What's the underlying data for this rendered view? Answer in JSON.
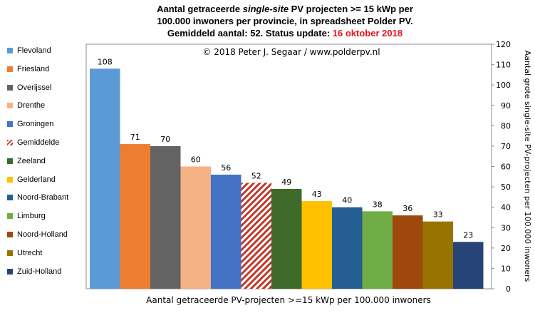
{
  "title": {
    "line1_a": "Aantal getraceerde ",
    "line1_b": "single-site",
    "line1_c": " PV projecten >= 15 kWp per",
    "line2": "100.000 inwoners per provincie, in spreadsheet Polder PV.",
    "line3_a": "Gemiddeld aantal: 52. Status update: ",
    "line3_b": "16 oktober 2018"
  },
  "chart_data": {
    "type": "bar",
    "title": "Aantal getraceerde single-site PV projecten >= 15 kWp per 100.000 inwoners per provincie, in spreadsheet Polder PV. Gemiddeld aantal: 52. Status update: 16 oktober 2018",
    "copyright": "© 2018 Peter J. Segaar / www.polderpv.nl",
    "xlabel": "Aantal getraceerde PV-projecten >=15 kWp per 100.000 inwoners",
    "ylabel": "Aantal grote single-site PV-projecten per 100.000 inwoners",
    "ylim": [
      0,
      120
    ],
    "yticks": [
      0,
      10,
      20,
      30,
      40,
      50,
      60,
      70,
      80,
      90,
      100,
      110,
      120
    ],
    "y_axis_position": "right",
    "grid": false,
    "legend_position": "left",
    "categories": [
      "Flevoland",
      "Friesland",
      "Overijssel",
      "Drenthe",
      "Groningen",
      "Gemiddelde",
      "Zeeland",
      "Gelderland",
      "Noord-Brabant",
      "Limburg",
      "Noord-Holland",
      "Utrecht",
      "Zuid-Holland"
    ],
    "values": [
      108,
      71,
      70,
      60,
      56,
      52,
      49,
      43,
      40,
      38,
      36,
      33,
      23
    ],
    "colors": [
      "#5b9bd5",
      "#ed7d31",
      "#636363",
      "#f4b183",
      "#4472c4",
      "#c0392b",
      "#3f6b2a",
      "#ffc000",
      "#255e91",
      "#70ad47",
      "#9e480e",
      "#997300",
      "#264478"
    ],
    "hatched": [
      false,
      false,
      false,
      false,
      false,
      true,
      false,
      false,
      false,
      false,
      false,
      false,
      false
    ]
  }
}
